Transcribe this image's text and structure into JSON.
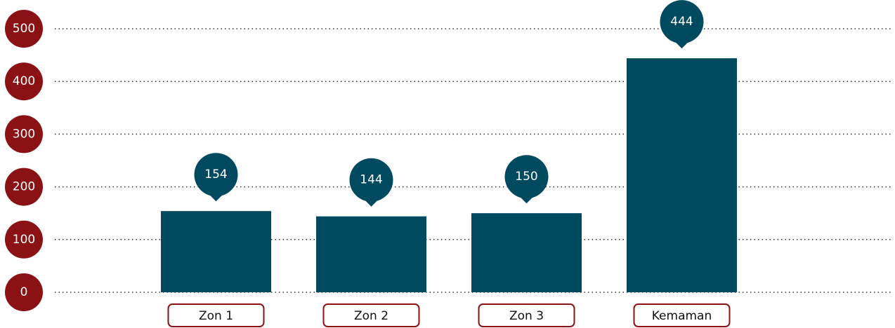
{
  "chart_data": {
    "type": "bar",
    "categories": [
      "Zon 1",
      "Zon 2",
      "Zon 3",
      "Kemaman"
    ],
    "values": [
      154,
      144,
      150,
      444
    ],
    "color": "#004a60",
    "tick_color": "#8b1214",
    "ylim": [
      0,
      500
    ],
    "yticks": [
      0,
      100,
      200,
      300,
      400,
      500
    ],
    "grid": true
  }
}
